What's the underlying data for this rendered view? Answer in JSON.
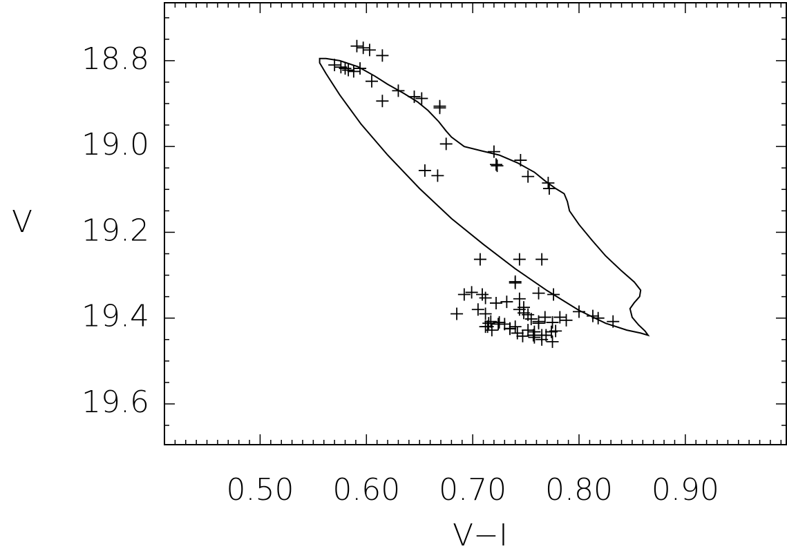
{
  "chart_data": {
    "type": "scatter",
    "title": "",
    "xlabel": "V−I",
    "ylabel": "V",
    "xlim": [
      0.41,
      0.995
    ],
    "ylim": [
      19.695,
      18.665
    ],
    "y_inverted": true,
    "grid": false,
    "legend": "none",
    "x_ticks": [
      {
        "value": 0.5,
        "label": "0.50"
      },
      {
        "value": 0.6,
        "label": "0.60"
      },
      {
        "value": 0.7,
        "label": "0.70"
      },
      {
        "value": 0.8,
        "label": "0.80"
      },
      {
        "value": 0.9,
        "label": "0.90"
      }
    ],
    "y_ticks": [
      {
        "value": 18.8,
        "label": "18.8"
      },
      {
        "value": 19.0,
        "label": "19.0"
      },
      {
        "value": 19.2,
        "label": "19.2"
      },
      {
        "value": 19.4,
        "label": "19.4"
      },
      {
        "value": 19.6,
        "label": "19.6"
      }
    ],
    "points": {
      "marker": "plus",
      "color": "#000000",
      "x": [
        0.591,
        0.597,
        0.603,
        0.615,
        0.57,
        0.576,
        0.58,
        0.583,
        0.588,
        0.594,
        0.605,
        0.615,
        0.63,
        0.645,
        0.652,
        0.669,
        0.669,
        0.675,
        0.655,
        0.667,
        0.72,
        0.722,
        0.723,
        0.745,
        0.752,
        0.771,
        0.772,
        0.707,
        0.744,
        0.765,
        0.74,
        0.74,
        0.692,
        0.699,
        0.709,
        0.712,
        0.722,
        0.732,
        0.744,
        0.762,
        0.776,
        0.685,
        0.705,
        0.712,
        0.717,
        0.712,
        0.718,
        0.724,
        0.73,
        0.735,
        0.744,
        0.748,
        0.752,
        0.755,
        0.762,
        0.762,
        0.768,
        0.775,
        0.782,
        0.788,
        0.8,
        0.813,
        0.818,
        0.832,
        0.715,
        0.725,
        0.74,
        0.752,
        0.758,
        0.765,
        0.774,
        0.714,
        0.735,
        0.742,
        0.758,
        0.769,
        0.778,
        0.748,
        0.757,
        0.765,
        0.775,
        0.747,
        0.758
      ],
      "y": [
        18.766,
        18.77,
        18.775,
        18.788,
        18.81,
        18.815,
        18.818,
        18.822,
        18.825,
        18.818,
        18.848,
        18.894,
        18.87,
        18.884,
        18.888,
        18.906,
        18.91,
        18.994,
        19.056,
        19.068,
        19.012,
        19.042,
        19.045,
        19.032,
        19.07,
        19.085,
        19.098,
        19.263,
        19.263,
        19.263,
        19.315,
        19.318,
        19.345,
        19.34,
        19.345,
        19.353,
        19.365,
        19.362,
        19.355,
        19.342,
        19.345,
        19.39,
        19.38,
        19.39,
        19.408,
        19.42,
        19.428,
        19.414,
        19.414,
        19.424,
        19.38,
        19.388,
        19.392,
        19.402,
        19.408,
        19.412,
        19.398,
        19.41,
        19.398,
        19.405,
        19.385,
        19.395,
        19.4,
        19.408,
        19.412,
        19.41,
        19.42,
        19.428,
        19.432,
        19.44,
        19.432,
        19.42,
        19.425,
        19.435,
        19.44,
        19.44,
        19.43,
        19.375,
        19.44,
        19.45,
        19.455,
        19.442,
        19.445
      ]
    },
    "curve": {
      "color": "#000000",
      "x": [
        0.556,
        0.562,
        0.575,
        0.592,
        0.608,
        0.62,
        0.635,
        0.648,
        0.658,
        0.668,
        0.675,
        0.68,
        0.692,
        0.708,
        0.725,
        0.742,
        0.758,
        0.768,
        0.778,
        0.786,
        0.789,
        0.791,
        0.8,
        0.812,
        0.825,
        0.84,
        0.852,
        0.858,
        0.857,
        0.852,
        0.848,
        0.85,
        0.856,
        0.862,
        0.865,
        0.858,
        0.845,
        0.825,
        0.8,
        0.77,
        0.74,
        0.71,
        0.68,
        0.65,
        0.62,
        0.595,
        0.575,
        0.562,
        0.556
      ],
      "y": [
        18.795,
        18.795,
        18.8,
        18.814,
        18.836,
        18.855,
        18.876,
        18.896,
        18.916,
        18.942,
        18.964,
        18.978,
        19.0,
        19.01,
        19.02,
        19.038,
        19.06,
        19.08,
        19.098,
        19.11,
        19.128,
        19.15,
        19.182,
        19.218,
        19.255,
        19.29,
        19.316,
        19.335,
        19.35,
        19.364,
        19.378,
        19.398,
        19.416,
        19.43,
        19.44,
        19.435,
        19.428,
        19.412,
        19.382,
        19.336,
        19.285,
        19.228,
        19.168,
        19.098,
        19.02,
        18.948,
        18.88,
        18.83,
        18.805
      ]
    }
  }
}
